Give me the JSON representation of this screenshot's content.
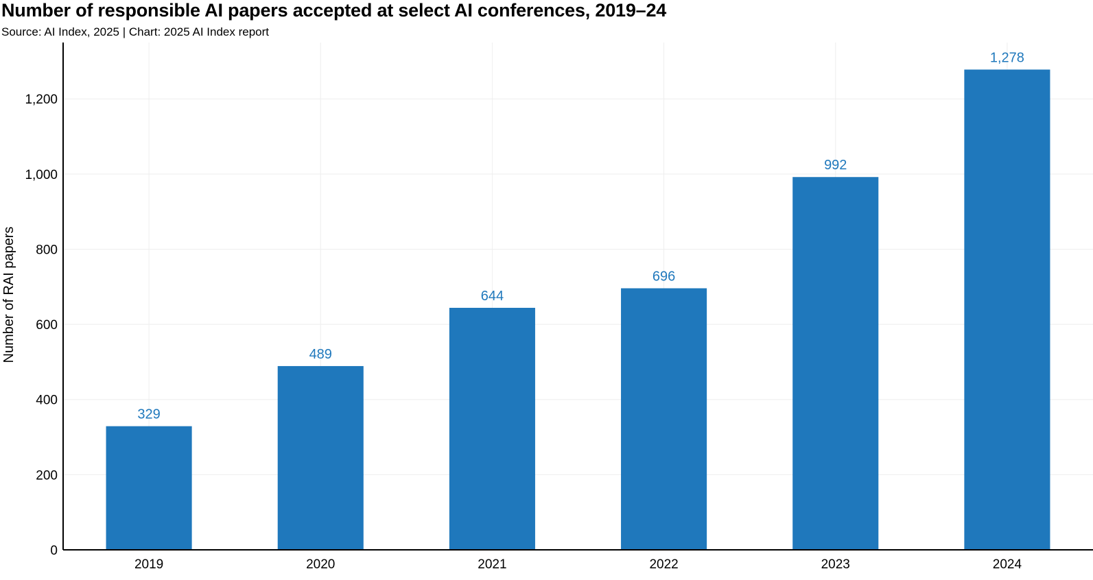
{
  "chart_data": {
    "type": "bar",
    "title": "Number of responsible AI papers accepted at select AI conferences, 2019–24",
    "subtitle": "Source: AI Index, 2025 | Chart: 2025 AI Index report",
    "xlabel": "",
    "ylabel": "Number of RAI papers",
    "categories": [
      "2019",
      "2020",
      "2021",
      "2022",
      "2023",
      "2024"
    ],
    "values": [
      329,
      489,
      644,
      696,
      992,
      1278
    ],
    "value_labels": [
      "329",
      "489",
      "644",
      "696",
      "992",
      "1,278"
    ],
    "ylim": [
      0,
      1350
    ],
    "yticks": [
      0,
      200,
      400,
      600,
      800,
      1000,
      1200
    ],
    "ytick_labels": [
      "0",
      "200",
      "400",
      "600",
      "800",
      "1,000",
      "1,200"
    ],
    "grid": true,
    "bar_color": "#1f78bc",
    "label_color": "#1f78bc",
    "grid_color": "#eeeeee"
  }
}
